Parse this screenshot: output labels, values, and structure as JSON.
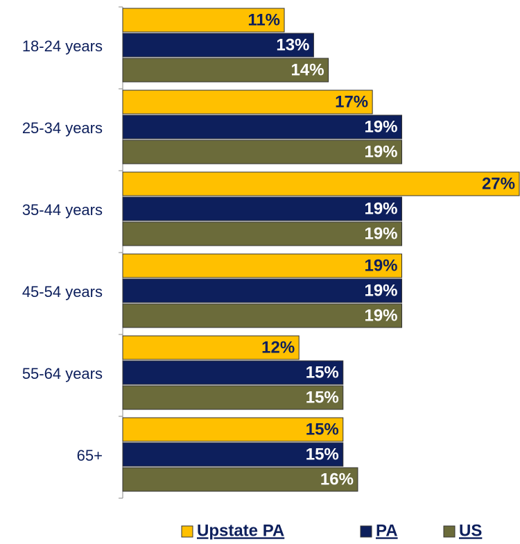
{
  "chart_data": {
    "type": "hbar",
    "categories": [
      "18-24 years",
      "25-34 years",
      "35-44 years",
      "45-54 years",
      "55-64 years",
      "65+"
    ],
    "series": [
      {
        "name": "Upstate PA",
        "color": "#ffc000",
        "label_color": "#0d1f5c",
        "values": [
          11,
          17,
          27,
          19,
          12,
          15
        ],
        "value_labels": [
          "11%",
          "17%",
          "27%",
          "19%",
          "12%",
          "15%"
        ]
      },
      {
        "name": "PA",
        "color": "#0d1f5c",
        "label_color": "#ffffff",
        "values": [
          13,
          19,
          19,
          19,
          15,
          15
        ],
        "value_labels": [
          "13%",
          "19%",
          "19%",
          "19%",
          "15%",
          "15%"
        ]
      },
      {
        "name": "US",
        "color": "#6b6b3a",
        "label_color": "#ffffff",
        "values": [
          14,
          19,
          19,
          19,
          15,
          16
        ],
        "value_labels": [
          "14%",
          "19%",
          "19%",
          "19%",
          "15%",
          "16%"
        ]
      }
    ],
    "xlim": [
      0,
      27
    ],
    "legend": "bottom"
  }
}
